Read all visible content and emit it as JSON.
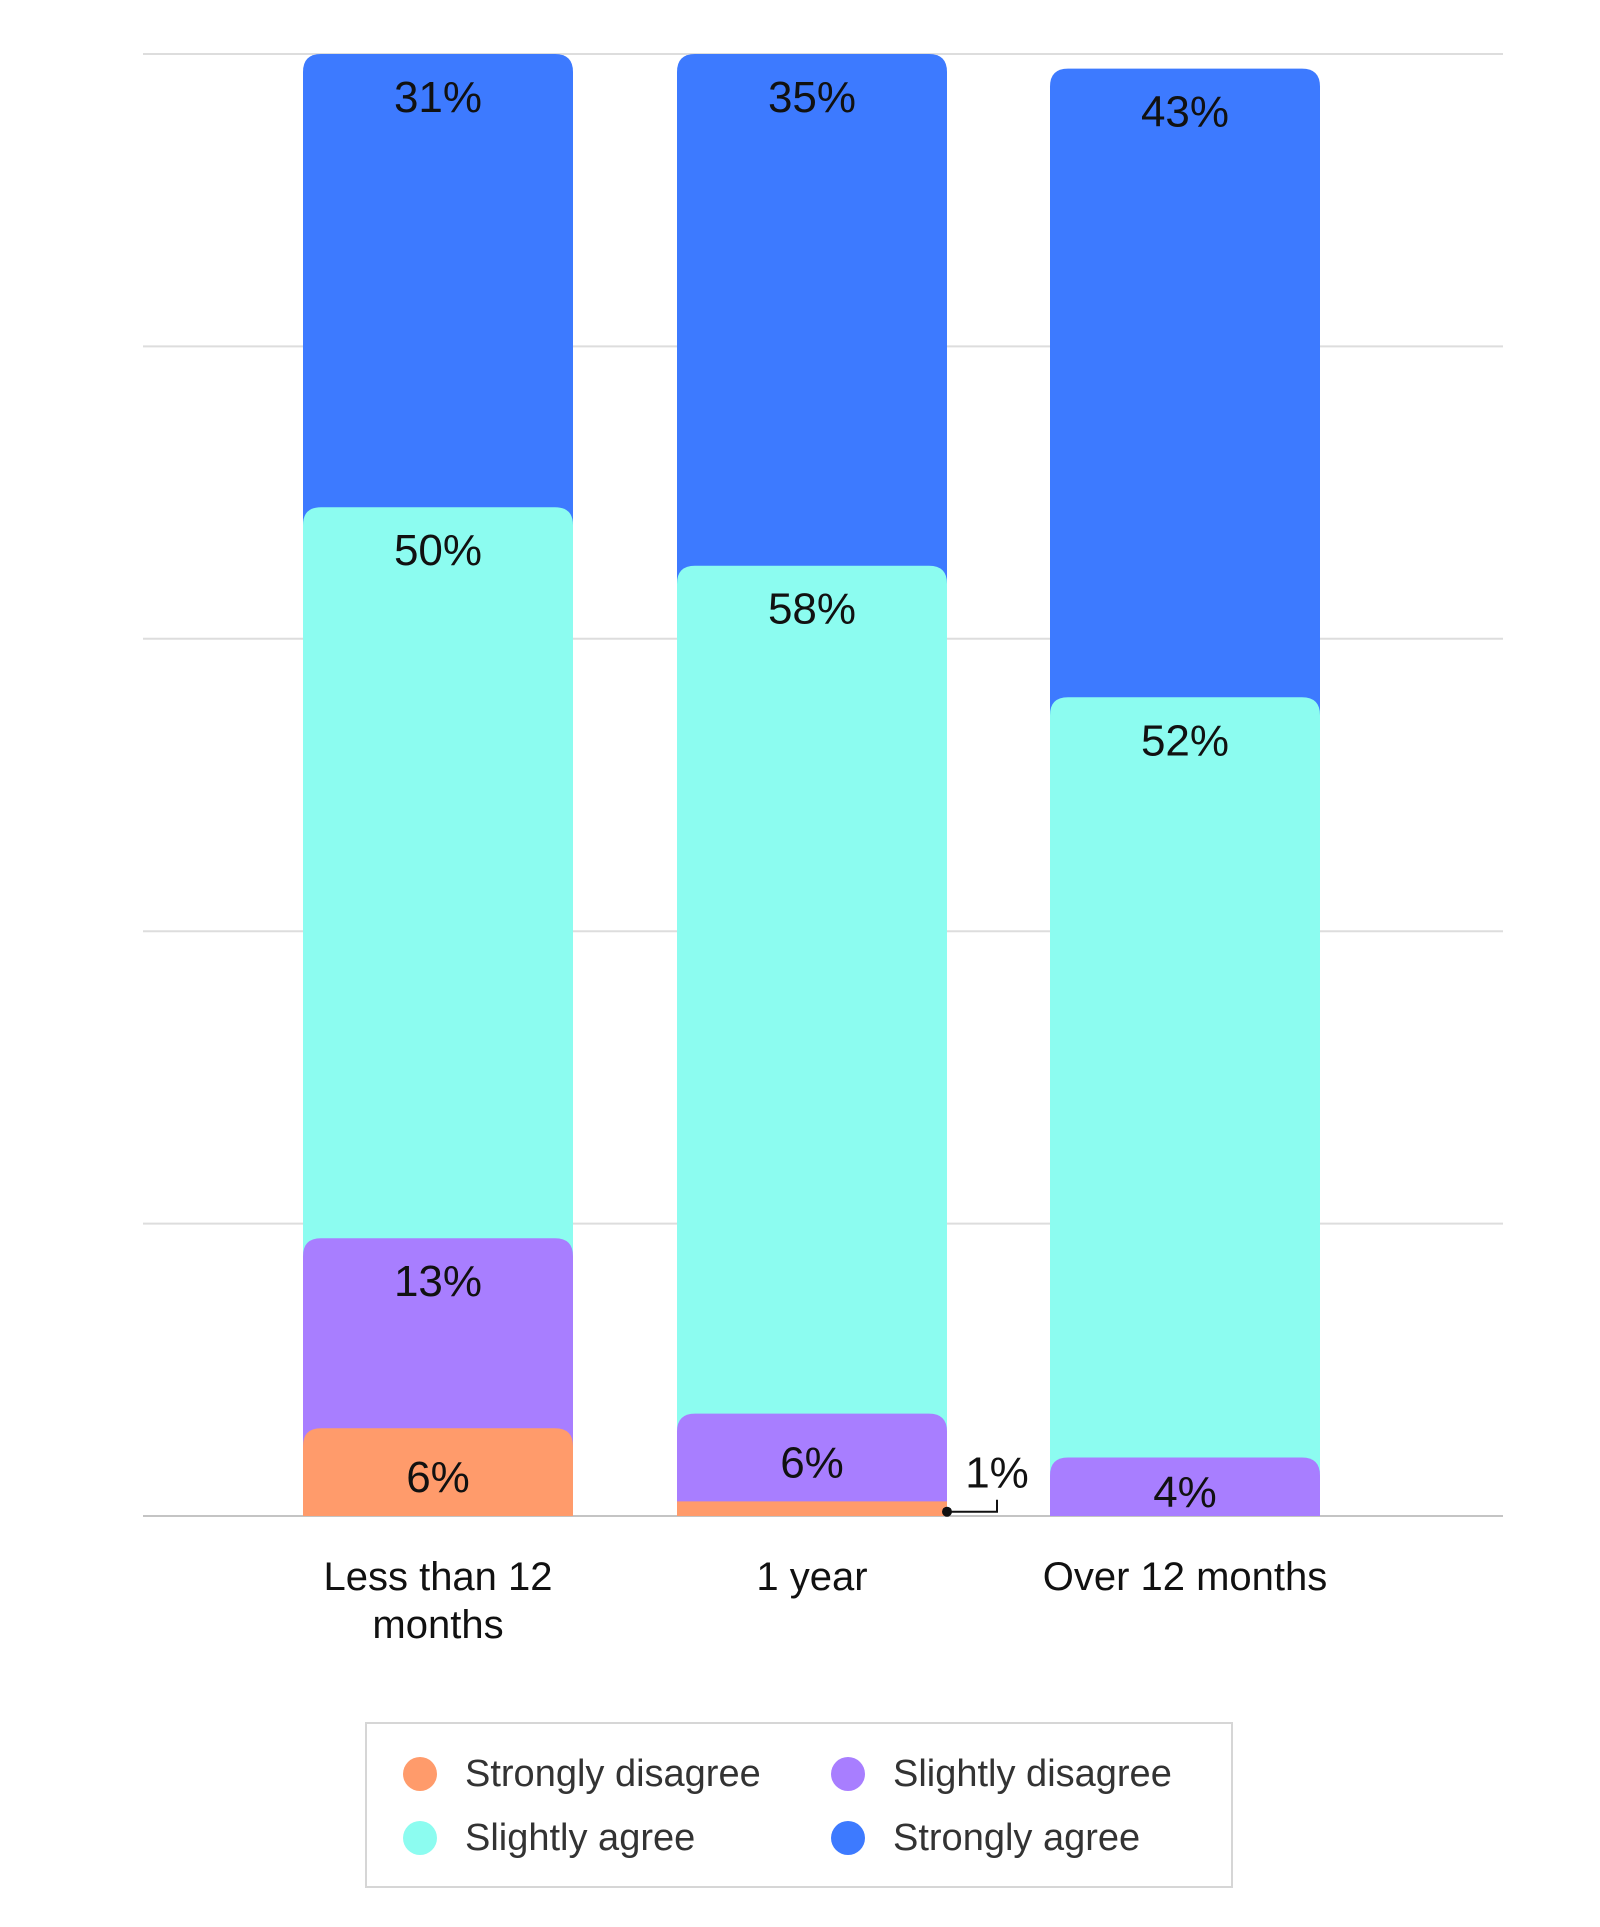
{
  "chart_data": {
    "type": "bar",
    "stacked": true,
    "categories": [
      "Less than 12 months",
      "1 year",
      "Over 12 months"
    ],
    "series": [
      {
        "name": "Strongly disagree",
        "color": "#ff9b6b",
        "values": [
          6,
          1,
          0
        ],
        "labels": [
          "6%",
          "1%",
          ""
        ]
      },
      {
        "name": "Slightly disagree",
        "color": "#a87eff",
        "values": [
          13,
          6,
          4
        ],
        "labels": [
          "13%",
          "6%",
          "4%"
        ]
      },
      {
        "name": "Slightly agree",
        "color": "#8cfcf0",
        "values": [
          50,
          58,
          52
        ],
        "labels": [
          "50%",
          "58%",
          "52%"
        ]
      },
      {
        "name": "Strongly agree",
        "color": "#3d7aff",
        "values": [
          31,
          35,
          43
        ],
        "labels": [
          "31%",
          "35%",
          "43%"
        ]
      }
    ],
    "ylim": [
      0,
      100
    ],
    "grid": true,
    "legend_position": "bottom",
    "title": "",
    "xlabel": "",
    "ylabel": ""
  },
  "legend": {
    "items": [
      {
        "label": "Strongly disagree",
        "color": "#ff9b6b"
      },
      {
        "label": "Slightly disagree",
        "color": "#a87eff"
      },
      {
        "label": "Slightly agree",
        "color": "#8cfcf0"
      },
      {
        "label": "Strongly agree",
        "color": "#3d7aff"
      }
    ]
  }
}
